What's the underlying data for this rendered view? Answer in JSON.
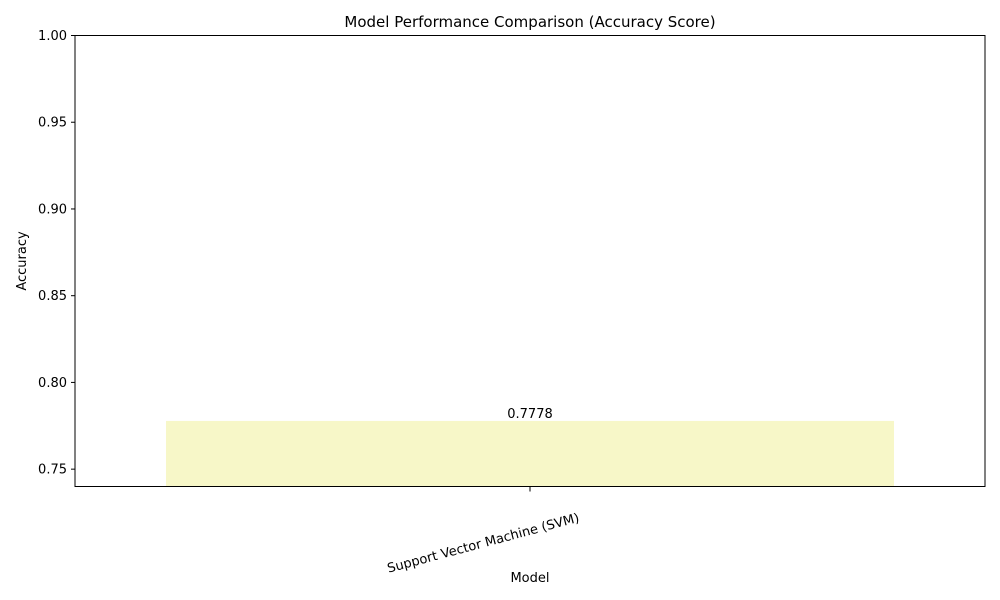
{
  "chart_data": {
    "type": "bar",
    "title": "Model Performance Comparison (Accuracy Score)",
    "xlabel": "Model",
    "ylabel": "Accuracy",
    "categories": [
      "Support Vector Machine (SVM)"
    ],
    "values": [
      0.7778
    ],
    "data_labels": [
      "0.7778"
    ],
    "ylim": [
      0.74,
      1.0
    ],
    "yticks": [
      0.75,
      0.8,
      0.85,
      0.9,
      0.95,
      1.0
    ],
    "ytick_labels": [
      "0.75",
      "0.80",
      "0.85",
      "0.90",
      "0.95",
      "1.00"
    ],
    "grid": false,
    "legend": "none",
    "bar_color": "#f7f7c8",
    "x_tick_rotation": 15
  }
}
